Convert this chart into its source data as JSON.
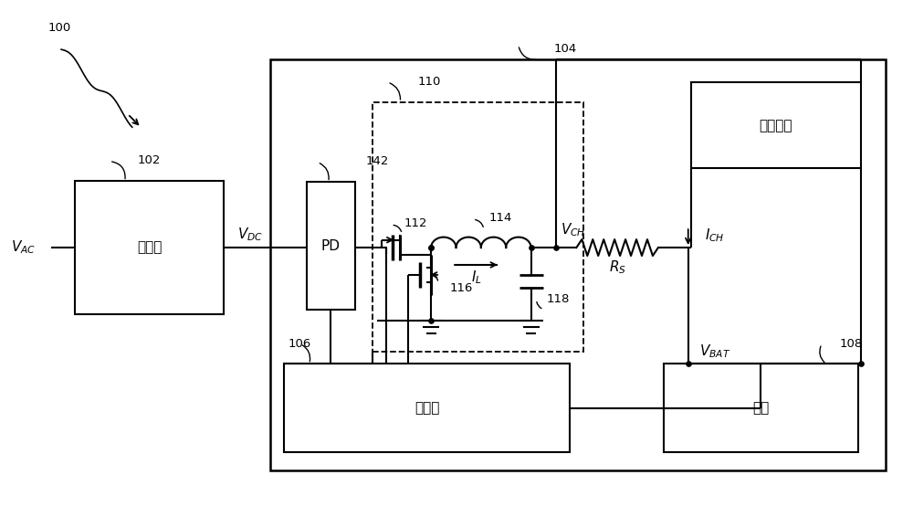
{
  "bg_color": "#ffffff",
  "fig_width": 10.0,
  "fig_height": 5.66,
  "text_adapter": "适配器",
  "text_controller": "控制器",
  "text_battery": "电池",
  "text_syscircuit": "系统电路",
  "text_PD": "PD",
  "n100": "100",
  "n102": "102",
  "n104": "104",
  "n106": "106",
  "n108": "108",
  "n110": "110",
  "n112": "112",
  "n114": "114",
  "n116": "116",
  "n118": "118",
  "n142": "142"
}
